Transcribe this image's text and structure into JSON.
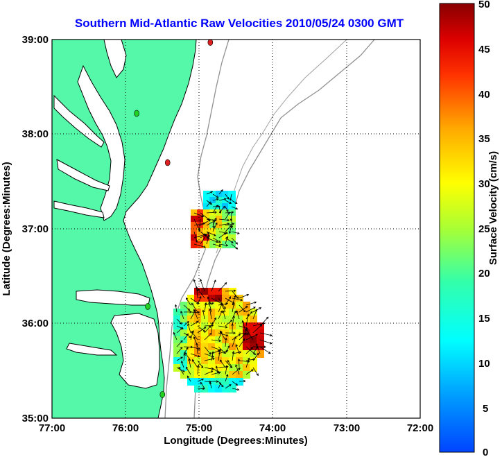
{
  "title": "Southern Mid-Atlantic Raw Velocities 2010/05/24 0300 GMT",
  "xlabel": "Longitude (Degrees:Minutes)",
  "ylabel": "Latitude (Degrees:Minutes)",
  "colorbar_label": "Surface Velocity (cm/s)",
  "x_ticks": [
    "77:00",
    "76:00",
    "75:00",
    "74:00",
    "73:00",
    "72:00"
  ],
  "y_ticks": [
    "39:00",
    "38:00",
    "37:00",
    "36:00",
    "35:00"
  ],
  "colorbar_ticks": [
    "50",
    "45",
    "40",
    "35",
    "30",
    "25",
    "20",
    "15",
    "10",
    "5",
    "0"
  ],
  "colors": {
    "land": "#55f7a8",
    "water": "#ffffff",
    "bathymetry": "#909090",
    "title": "#0000ff",
    "station_green": "#22d022",
    "station_red": "#e02020"
  },
  "map": {
    "lon_range": [
      -77,
      -72
    ],
    "lat_range": [
      35,
      39
    ],
    "grid": true,
    "colorbar_range": [
      0,
      50
    ],
    "colorbar_units": "cm/s",
    "stations": [
      {
        "lon": -74.85,
        "lat": 38.97,
        "status": "red"
      },
      {
        "lon": -75.85,
        "lat": 38.22,
        "status": "green"
      },
      {
        "lon": -75.43,
        "lat": 37.7,
        "status": "red"
      },
      {
        "lon": -75.7,
        "lat": 36.18,
        "status": "green"
      },
      {
        "lon": -75.5,
        "lat": 35.25,
        "status": "green"
      }
    ]
  }
}
